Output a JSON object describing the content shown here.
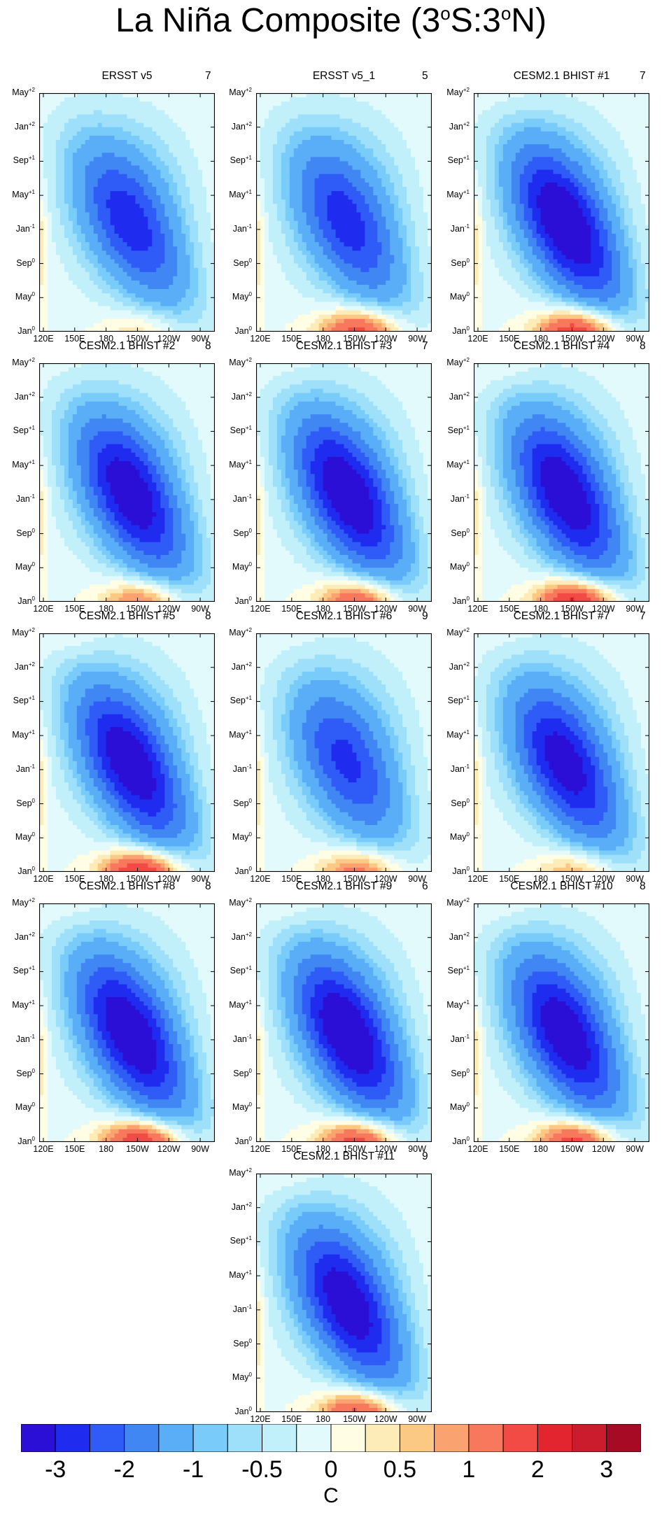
{
  "title": {
    "prefix": "La Niña Composite (3",
    "s1": "o",
    "mid": "S:3",
    "s2": "o",
    "suffix": "N)"
  },
  "panels": [
    {
      "name": "ERSST v5",
      "count": "7",
      "intensity": 0.62,
      "decay": 0.55,
      "warm_onset": 0.25,
      "warm_late": 0.05
    },
    {
      "name": "ERSST v5_1",
      "count": "5",
      "intensity": 0.6,
      "decay": 0.5,
      "warm_onset": 0.75,
      "warm_late": 0.1
    },
    {
      "name": "CESM2.1 BHIST #1",
      "count": "7",
      "intensity": 0.92,
      "decay": 0.45,
      "warm_onset": 0.85,
      "warm_late": 0.35
    },
    {
      "name": "CESM2.1 BHIST #2",
      "count": "8",
      "intensity": 0.85,
      "decay": 0.4,
      "warm_onset": 0.55,
      "warm_late": 0.2
    },
    {
      "name": "CESM2.1 BHIST #3",
      "count": "7",
      "intensity": 0.9,
      "decay": 0.4,
      "warm_onset": 0.7,
      "warm_late": 0.35
    },
    {
      "name": "CESM2.1 BHIST #4",
      "count": "8",
      "intensity": 0.88,
      "decay": 0.4,
      "warm_onset": 0.95,
      "warm_late": 0.55
    },
    {
      "name": "CESM2.1 BHIST #5",
      "count": "8",
      "intensity": 0.86,
      "decay": 0.55,
      "warm_onset": 0.92,
      "warm_late": 0.6
    },
    {
      "name": "CESM2.1 BHIST #6",
      "count": "9",
      "intensity": 0.55,
      "decay": 0.3,
      "warm_onset": 0.55,
      "warm_late": 0.25
    },
    {
      "name": "CESM2.1 BHIST #7",
      "count": "7",
      "intensity": 0.8,
      "decay": 0.4,
      "warm_onset": 0.4,
      "warm_late": 0.3
    },
    {
      "name": "CESM2.1 BHIST #8",
      "count": "8",
      "intensity": 0.9,
      "decay": 0.5,
      "warm_onset": 0.9,
      "warm_late": 0.5
    },
    {
      "name": "CESM2.1 BHIST #9",
      "count": "6",
      "intensity": 0.92,
      "decay": 0.4,
      "warm_onset": 0.8,
      "warm_late": 0.5
    },
    {
      "name": "CESM2.1 BHIST #10",
      "count": "8",
      "intensity": 0.86,
      "decay": 0.4,
      "warm_onset": 0.8,
      "warm_late": 0.45
    },
    {
      "name": "CESM2.1 BHIST #11",
      "count": "9",
      "intensity": 0.85,
      "decay": 0.4,
      "warm_onset": 0.75,
      "warm_late": 0.45
    }
  ],
  "chart_data": {
    "type": "heatmap",
    "title": "La Niña Composite (3oS:3oN)",
    "x_ticks": [
      "120E",
      "150E",
      "180",
      "150W",
      "120W",
      "90W"
    ],
    "x_tick_lons": [
      120,
      150,
      180,
      210,
      240,
      270
    ],
    "xlim": [
      116,
      284
    ],
    "y_ticks": [
      {
        "base": "Jan",
        "sup": "0",
        "month": 0
      },
      {
        "base": "May",
        "sup": "0",
        "month": 4
      },
      {
        "base": "Sep",
        "sup": "0",
        "month": 8
      },
      {
        "base": "Jan",
        "sup": "-1",
        "month": 12
      },
      {
        "base": "May",
        "sup": "+1",
        "month": 16
      },
      {
        "base": "Sep",
        "sup": "+1",
        "month": 20
      },
      {
        "base": "Jan",
        "sup": "+2",
        "month": 24
      },
      {
        "base": "May",
        "sup": "+2",
        "month": 28
      }
    ],
    "ylim": [
      0,
      28
    ],
    "colorbar": {
      "levels": [
        -3,
        -2.5,
        -2,
        -1.5,
        -1,
        -0.75,
        -0.5,
        -0.25,
        0,
        0.25,
        0.5,
        0.75,
        1,
        1.5,
        2,
        2.5,
        3
      ],
      "labels": [
        "-3",
        "-2",
        "-1",
        "-0.5",
        "0",
        "0.5",
        "1",
        "2",
        "3"
      ],
      "label_edges": [
        0,
        2,
        4,
        6,
        8,
        10,
        12,
        14,
        16
      ],
      "colors": [
        "#2b0fd6",
        "#1f2cf0",
        "#2f5bf7",
        "#4187f4",
        "#5aaef7",
        "#79ccf9",
        "#9ee0fa",
        "#c2f0fa",
        "#e3fafd",
        "#fffde3",
        "#fdecb7",
        "#fcc985",
        "#fba370",
        "#f8785d",
        "#f24a45",
        "#e2252f",
        "#cb1c2d",
        "#a60a25"
      ],
      "unit": "C"
    }
  }
}
